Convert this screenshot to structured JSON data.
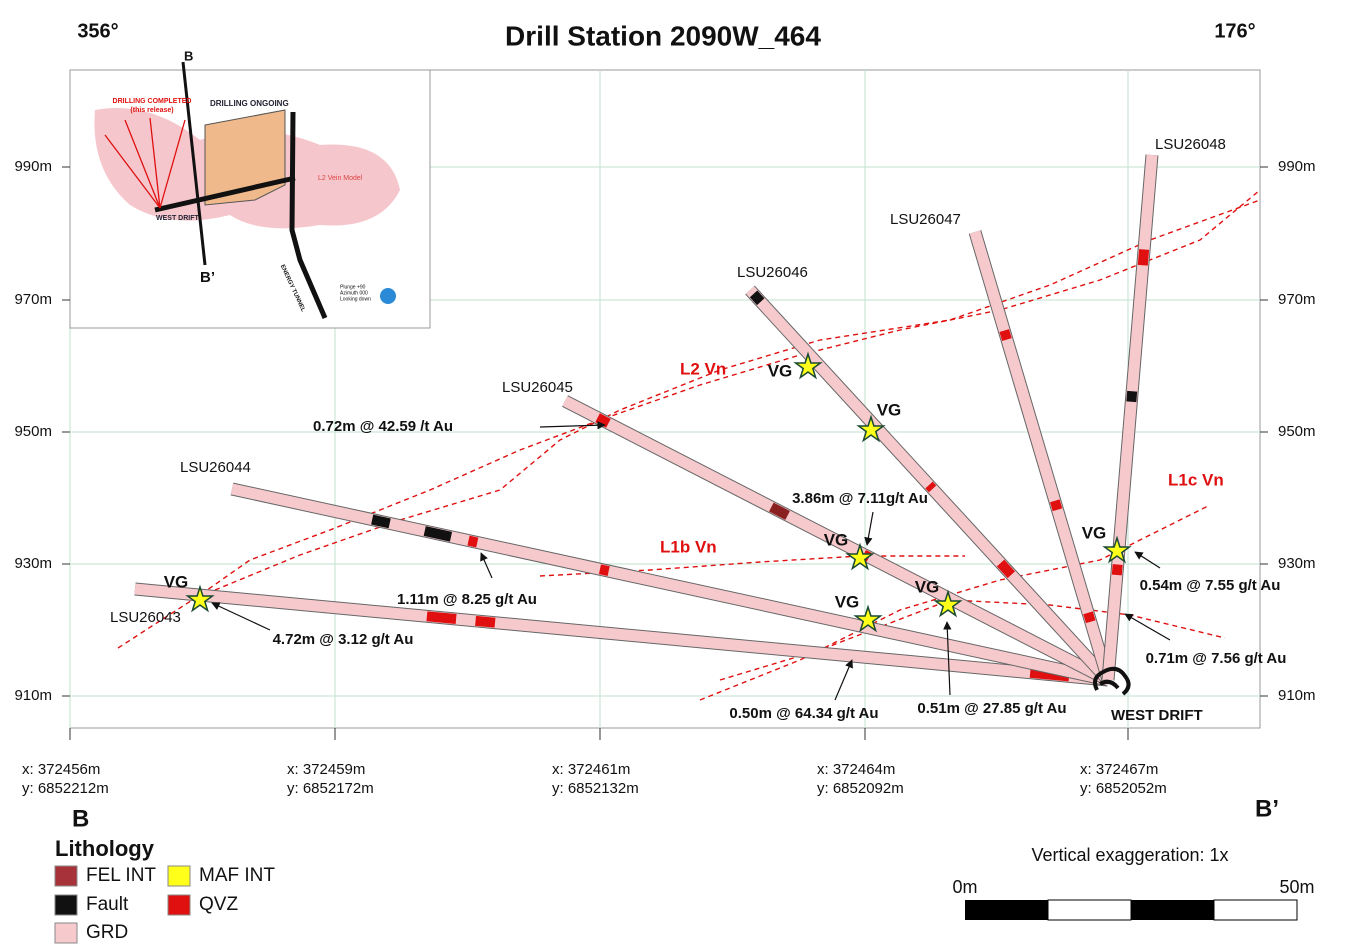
{
  "header": {
    "title": "Drill Station 2090W_464",
    "left_bearing": "356°",
    "right_bearing": "176°"
  },
  "elevation_labels": [
    "990m",
    "970m",
    "950m",
    "930m",
    "910m"
  ],
  "coordinate_labels": [
    {
      "x": "x: 372456m",
      "y": "y: 6852212m"
    },
    {
      "x": "x: 372459m",
      "y": "y: 6852172m"
    },
    {
      "x": "x: 372461m",
      "y": "y: 6852132m"
    },
    {
      "x": "x: 372464m",
      "y": "y: 6852092m"
    },
    {
      "x": "x: 372467m",
      "y": "y: 6852052m"
    }
  ],
  "section_ends": {
    "left": "B",
    "right": "B’"
  },
  "holes": [
    {
      "name": "LSU26043"
    },
    {
      "name": "LSU26044"
    },
    {
      "name": "LSU26045"
    },
    {
      "name": "LSU26046"
    },
    {
      "name": "LSU26047"
    },
    {
      "name": "LSU26048"
    }
  ],
  "intercepts": [
    "0.72m @ 42.59 /t Au",
    "3.86m @ 7.11g/t Au",
    "1.11m @ 8.25 g/t Au",
    "4.72m @ 3.12 g/t Au",
    "0.54m @ 7.55 g/t Au",
    "0.71m @ 7.56 g/t Au",
    "0.50m @ 64.34 g/t Au",
    "0.51m @ 27.85 g/t Au"
  ],
  "visible_gold": [
    "VG",
    "VG",
    "VG",
    "VG",
    "VG",
    "VG",
    "VG"
  ],
  "veins": [
    "L2 Vn",
    "L1b Vn",
    "L1c Vn"
  ],
  "drift_label": "WEST DRIFT",
  "legend": {
    "title": "Lithology",
    "items": [
      "FEL INT",
      "Fault",
      "GRD",
      "MAF INT",
      "QVZ"
    ]
  },
  "scale": {
    "exaggeration": "Vertical exaggeration: 1x",
    "start": "0m",
    "end": "50m"
  },
  "inset": {
    "section_top": "B",
    "section_bottom": "B’",
    "completed": "DRILLING COMPLETED",
    "completed_note": "(this release)",
    "ongoing": "DRILLING ONGOING",
    "drift": "WEST DRIFT",
    "model": "L2 Vein Model",
    "tunnel": "ENERGY TUNNEL",
    "view": [
      "Plunge +90",
      "Azimuth 000",
      "Looking down"
    ]
  }
}
